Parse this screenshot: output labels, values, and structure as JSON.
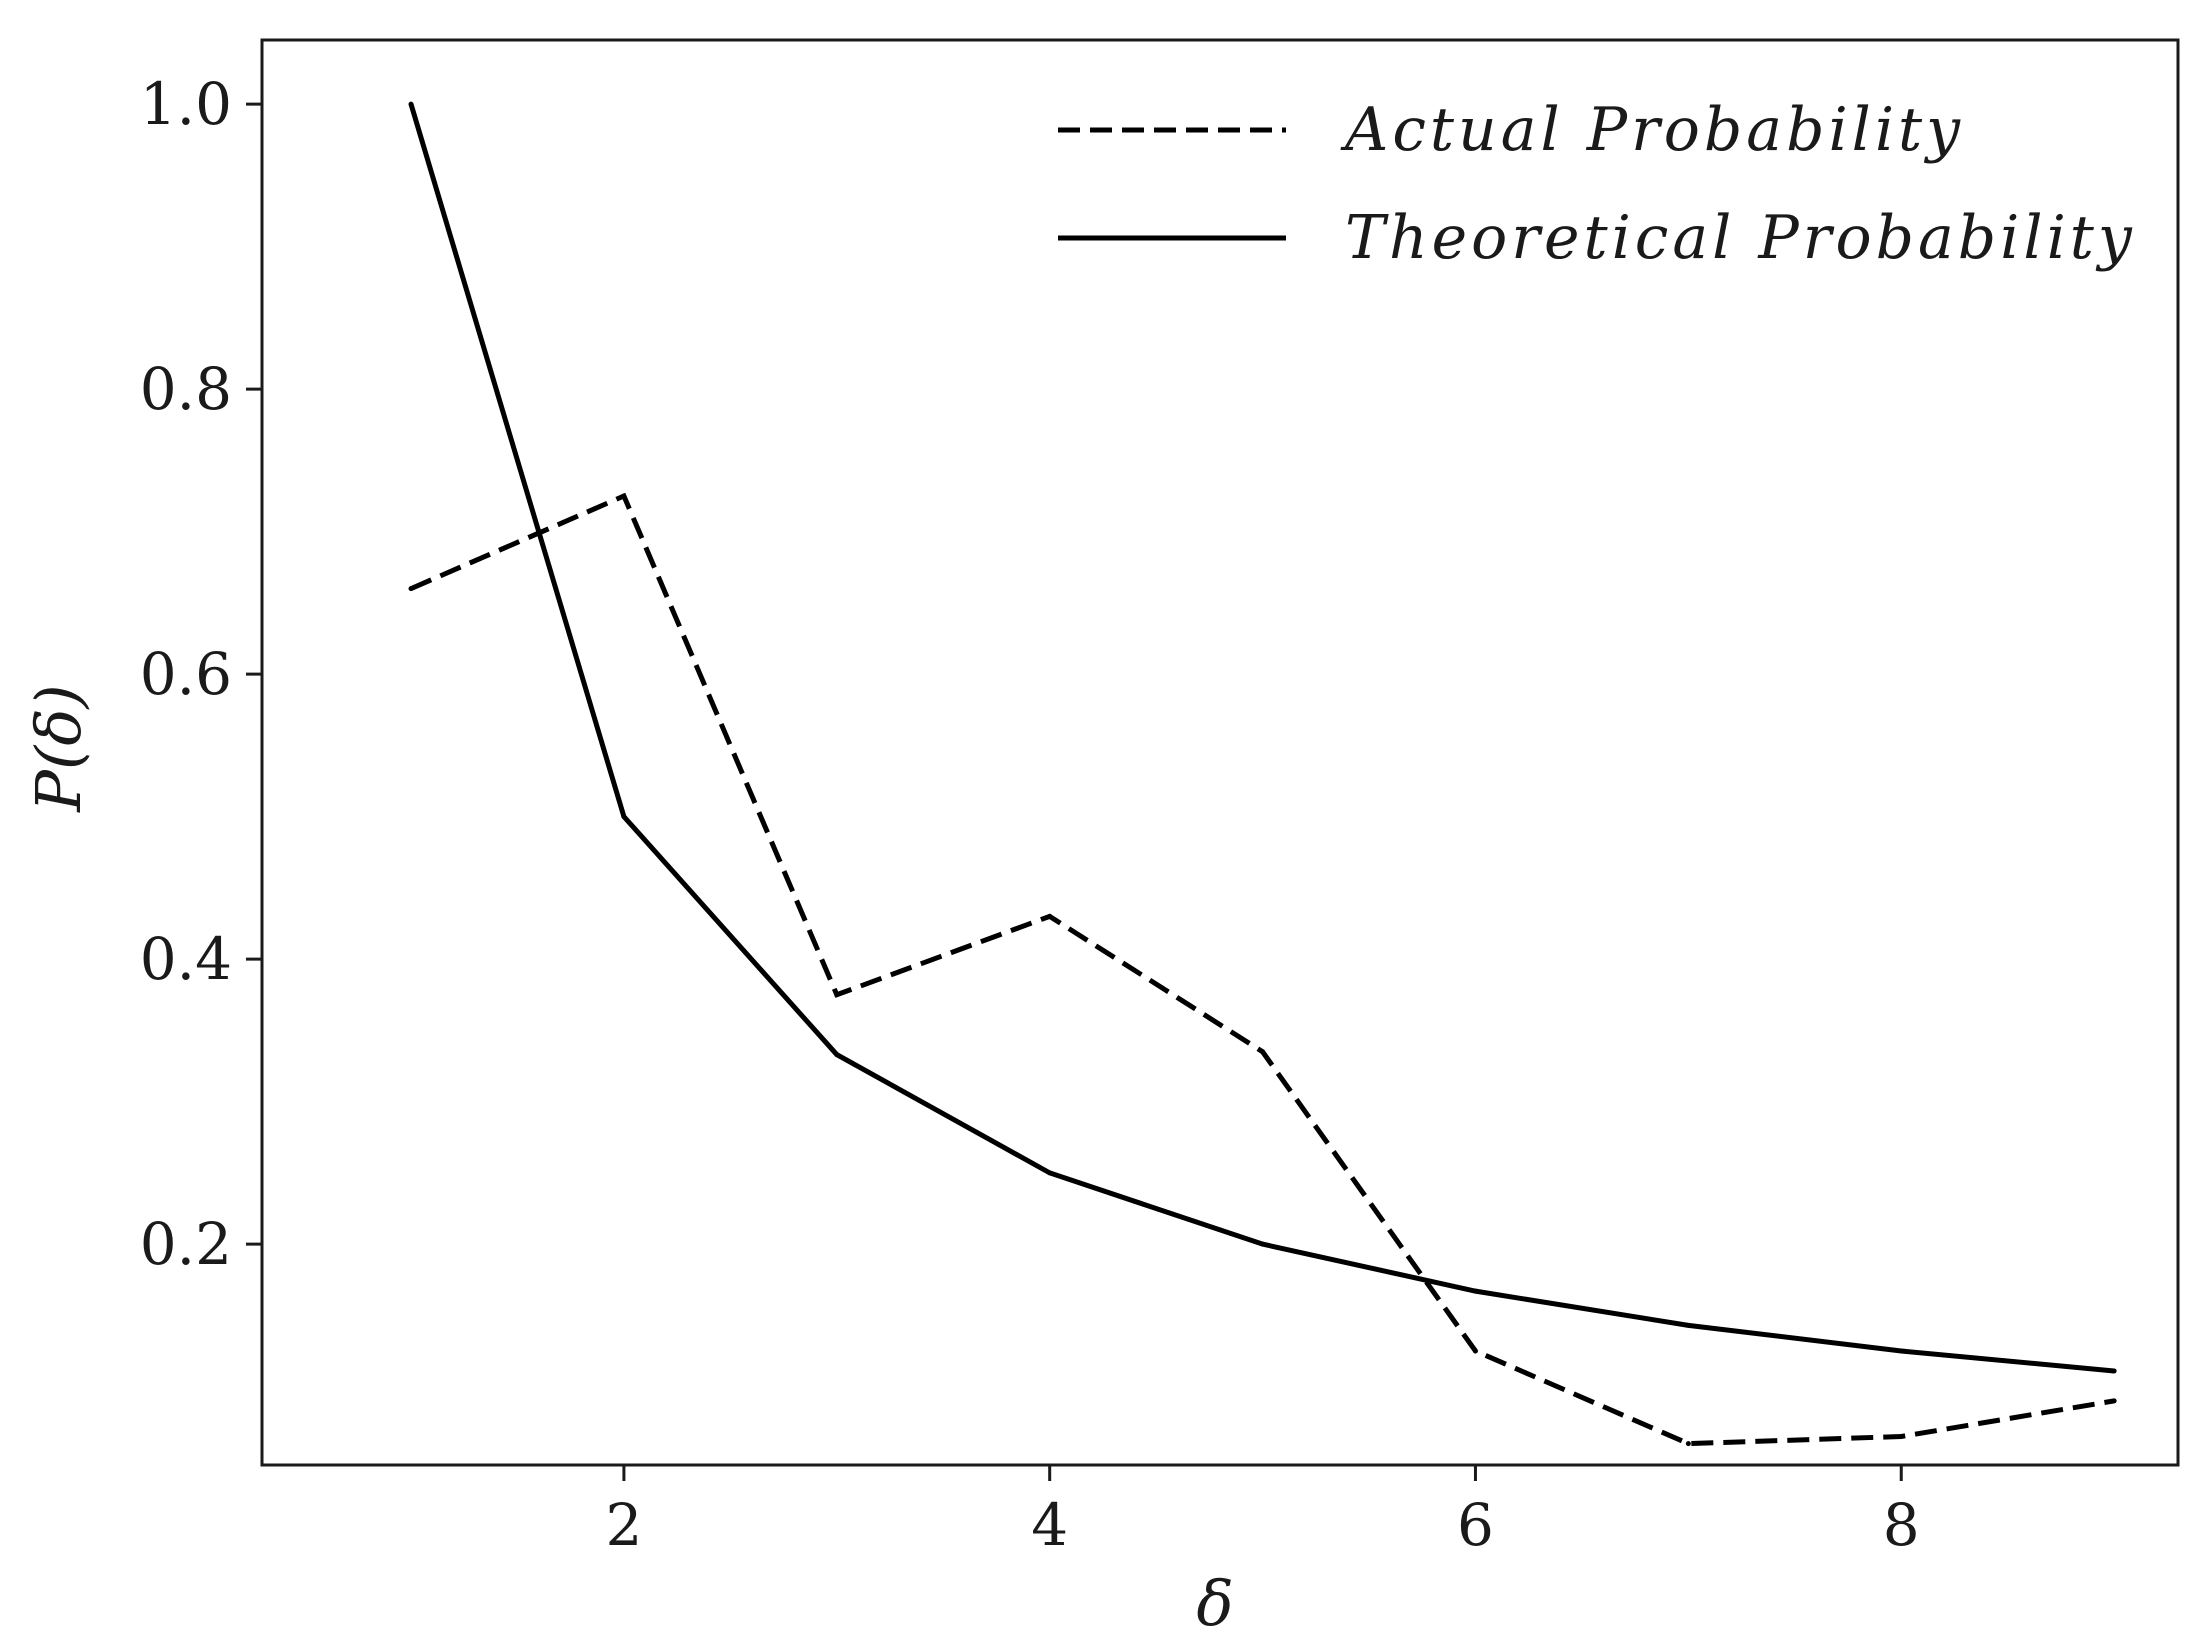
{
  "chart_data": {
    "type": "line",
    "title": "",
    "xlabel": "δ",
    "ylabel": "P(δ)",
    "xlim": [
      0.3,
      9.3
    ],
    "ylim": [
      0.045,
      1.045
    ],
    "x_ticks": [
      2,
      4,
      6,
      8
    ],
    "x_tick_labels": [
      "2",
      "4",
      "6",
      "8"
    ],
    "y_ticks": [
      0.2,
      0.4,
      0.6,
      0.8,
      1.0
    ],
    "y_tick_labels": [
      "0.2",
      "0.4",
      "0.6",
      "0.8",
      "1.0"
    ],
    "grid": false,
    "legend_position": "top-right",
    "x": [
      1,
      2,
      3,
      4,
      5,
      6,
      7,
      8,
      9
    ],
    "series": [
      {
        "name": "Actual Probability",
        "line_style": "dashed",
        "color": "#000000",
        "values": [
          0.66,
          0.725,
          0.375,
          0.43,
          0.335,
          0.125,
          0.06,
          0.065,
          0.09
        ]
      },
      {
        "name": "Theoretical Probability",
        "line_style": "solid",
        "color": "#000000",
        "values": [
          1.0,
          0.5,
          0.333,
          0.25,
          0.2,
          0.167,
          0.143,
          0.125,
          0.111
        ]
      }
    ]
  }
}
